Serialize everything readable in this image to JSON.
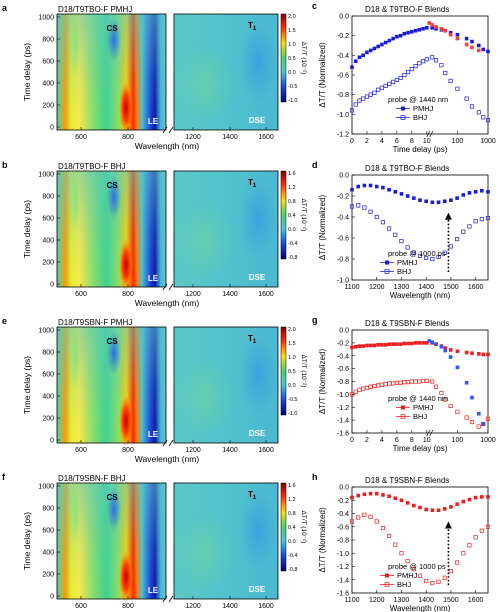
{
  "heatmaps": [
    {
      "letter": "a",
      "title": "D18/T9TBO-F PMHJ",
      "cbar_ticks": [
        "2.0",
        "1.5",
        "1.0",
        "0.5",
        "0.0",
        "-0.5",
        "-1.0"
      ],
      "cbar_range": [
        -1.0,
        2.0
      ]
    },
    {
      "letter": "b",
      "title": "D18/T9TBO-F BHJ",
      "cbar_ticks": [
        "1.6",
        "1.2",
        "0.8",
        "0.4",
        "0.0",
        "-0.4",
        "-0.8"
      ],
      "cbar_range": [
        -0.8,
        1.6
      ]
    },
    {
      "letter": "e",
      "title": "D18/T9SBN-F PMHJ",
      "cbar_ticks": [
        "2.0",
        "1.5",
        "1.0",
        "0.5",
        "0.0",
        "-0.5",
        "-1.0"
      ],
      "cbar_range": [
        -1.0,
        2.0
      ]
    },
    {
      "letter": "f",
      "title": "D18/T9SBN-F BHJ",
      "cbar_ticks": [
        "1.6",
        "1.2",
        "0.8",
        "0.4",
        "0.0",
        "-0.4",
        "-0.8"
      ],
      "cbar_range": [
        -0.8,
        1.6
      ]
    }
  ],
  "heatmap_common": {
    "xlabel": "Wavelength (nm)",
    "ylabel": "Time delay (ps)",
    "cbar_label": "ΔT/T (10⁻²)",
    "x_ticks_left": [
      "600",
      "800"
    ],
    "x_ticks_right": [
      "1200",
      "1400",
      "1600"
    ],
    "y_ticks": [
      "1000",
      "800",
      "600",
      "400",
      "200",
      "0"
    ],
    "labels": {
      "cs": "CS",
      "le": "LE",
      "t1": "T",
      "t1_sub": "1",
      "dse": "DSE"
    }
  },
  "chart_data": [
    {
      "panel": "c",
      "type": "scatter",
      "title": "D18 & T9TBO-F Blends",
      "xlabel": "Time delay (ps)",
      "ylabel": "ΔT/T (Normalized)",
      "xscale": "symlog",
      "x_ticks": [
        "0",
        "2",
        "4",
        "6",
        "8",
        "10",
        "100",
        "1000"
      ],
      "ylim": [
        -1.2,
        0.0
      ],
      "y_ticks": [
        "0.0",
        "-0.2",
        "-0.4",
        "-0.6",
        "-0.8",
        "-1.0",
        "-1.2"
      ],
      "annotation": "probe @ 1440 nm",
      "series": [
        {
          "name": "PMHJ",
          "color": "#1a1adb",
          "filled": true,
          "x": [
            0,
            0.5,
            1,
            1.5,
            2,
            2.5,
            3,
            3.5,
            4,
            4.5,
            5,
            5.5,
            6,
            6.5,
            7,
            7.5,
            8,
            8.5,
            9,
            9.5,
            10,
            15,
            20,
            30,
            40,
            60,
            100,
            200,
            300,
            500,
            700,
            1000
          ],
          "y": [
            -0.52,
            -0.46,
            -0.42,
            -0.4,
            -0.37,
            -0.35,
            -0.33,
            -0.31,
            -0.29,
            -0.27,
            -0.25,
            -0.23,
            -0.21,
            -0.2,
            -0.18,
            -0.17,
            -0.16,
            -0.15,
            -0.14,
            -0.13,
            -0.12,
            -0.12,
            -0.13,
            -0.14,
            -0.15,
            -0.17,
            -0.19,
            -0.23,
            -0.26,
            -0.3,
            -0.34,
            -0.36
          ]
        },
        {
          "name": "BHJ",
          "color": "#1a1adb",
          "filled": false,
          "x": [
            0,
            0.5,
            1,
            1.5,
            2,
            2.5,
            3,
            3.5,
            4,
            4.5,
            5,
            5.5,
            6,
            6.5,
            7,
            7.5,
            8,
            8.5,
            9,
            9.5,
            10,
            15,
            20,
            30,
            40,
            60,
            100,
            200,
            300,
            500,
            700,
            1000
          ],
          "y": [
            -0.96,
            -0.9,
            -0.86,
            -0.84,
            -0.82,
            -0.8,
            -0.78,
            -0.75,
            -0.73,
            -0.71,
            -0.69,
            -0.67,
            -0.65,
            -0.63,
            -0.6,
            -0.57,
            -0.54,
            -0.51,
            -0.48,
            -0.46,
            -0.44,
            -0.42,
            -0.45,
            -0.5,
            -0.58,
            -0.66,
            -0.74,
            -0.84,
            -0.92,
            -0.98,
            -1.03,
            -1.06
          ]
        },
        {
          "name": "",
          "color": "#ff3b3b",
          "filled": true,
          "x": [
            12,
            15,
            20,
            30,
            40,
            60,
            100,
            200,
            300,
            500
          ],
          "y": [
            -0.07,
            -0.09,
            -0.11,
            -0.13,
            -0.15,
            -0.19,
            -0.23,
            -0.29,
            -0.32,
            -0.35
          ]
        }
      ]
    },
    {
      "panel": "d",
      "type": "scatter",
      "title": "D18 & T9TBO-F Blends",
      "xlabel": "Wavelength (nm)",
      "ylabel": "ΔT/T (Normalized)",
      "xlim": [
        1100,
        1650
      ],
      "x_ticks": [
        "1100",
        "1200",
        "1300",
        "1400",
        "1500",
        "1600"
      ],
      "ylim": [
        -1.0,
        0.0
      ],
      "y_ticks": [
        "0.0",
        "-0.2",
        "-0.4",
        "-0.6",
        "-0.8",
        "-1.0"
      ],
      "annotation": "probe @ 1000 ps",
      "series": [
        {
          "name": "PMHJ",
          "color": "#1a1adb",
          "filled": true,
          "x": [
            1100,
            1125,
            1150,
            1175,
            1200,
            1225,
            1250,
            1275,
            1300,
            1325,
            1350,
            1375,
            1400,
            1425,
            1450,
            1475,
            1500,
            1525,
            1550,
            1575,
            1600,
            1625,
            1650
          ],
          "y": [
            -0.14,
            -0.11,
            -0.1,
            -0.1,
            -0.11,
            -0.12,
            -0.14,
            -0.16,
            -0.18,
            -0.2,
            -0.22,
            -0.24,
            -0.25,
            -0.26,
            -0.26,
            -0.25,
            -0.24,
            -0.22,
            -0.19,
            -0.17,
            -0.16,
            -0.15,
            -0.16
          ]
        },
        {
          "name": "BHJ",
          "color": "#1a1adb",
          "filled": false,
          "x": [
            1100,
            1125,
            1150,
            1175,
            1200,
            1225,
            1250,
            1275,
            1300,
            1325,
            1350,
            1375,
            1400,
            1425,
            1450,
            1475,
            1500,
            1525,
            1550,
            1575,
            1600,
            1625,
            1650
          ],
          "y": [
            -0.3,
            -0.29,
            -0.31,
            -0.35,
            -0.4,
            -0.45,
            -0.51,
            -0.57,
            -0.63,
            -0.69,
            -0.74,
            -0.77,
            -0.79,
            -0.8,
            -0.78,
            -0.74,
            -0.68,
            -0.61,
            -0.54,
            -0.49,
            -0.44,
            -0.42,
            -0.41
          ]
        }
      ]
    },
    {
      "panel": "g",
      "type": "scatter",
      "title": "D18 & T9SBN-F Blends",
      "xlabel": "Time delay (ps)",
      "ylabel": "ΔT/T (Normalized)",
      "xscale": "symlog",
      "x_ticks": [
        "0",
        "2",
        "4",
        "6",
        "8",
        "10",
        "100",
        "1000"
      ],
      "ylim": [
        -1.6,
        0.0
      ],
      "y_ticks": [
        "0.0",
        "-0.2",
        "-0.4",
        "-0.6",
        "-0.8",
        "-1.0",
        "-1.2",
        "-1.4",
        "-1.6"
      ],
      "annotation": "probe @ 1440 nm",
      "series": [
        {
          "name": "PMHJ",
          "color": "#ee1c1c",
          "filled": true,
          "x": [
            0,
            0.5,
            1,
            1.5,
            2,
            2.5,
            3,
            3.5,
            4,
            4.5,
            5,
            5.5,
            6,
            6.5,
            7,
            7.5,
            8,
            8.5,
            9,
            9.5,
            10,
            15,
            20,
            30,
            40,
            60,
            100,
            200,
            300,
            500,
            700,
            1000
          ],
          "y": [
            -0.27,
            -0.26,
            -0.25,
            -0.25,
            -0.24,
            -0.24,
            -0.24,
            -0.23,
            -0.23,
            -0.23,
            -0.22,
            -0.22,
            -0.22,
            -0.22,
            -0.21,
            -0.21,
            -0.21,
            -0.2,
            -0.2,
            -0.2,
            -0.2,
            -0.2,
            -0.22,
            -0.25,
            -0.28,
            -0.31,
            -0.33,
            -0.35,
            -0.36,
            -0.37,
            -0.38,
            -0.38
          ]
        },
        {
          "name": "BHJ",
          "color": "#ee1c1c",
          "filled": false,
          "x": [
            0,
            0.5,
            1,
            1.5,
            2,
            2.5,
            3,
            3.5,
            4,
            4.5,
            5,
            5.5,
            6,
            6.5,
            7,
            7.5,
            8,
            8.5,
            9,
            9.5,
            10,
            15,
            20,
            30,
            40,
            60,
            100,
            200,
            300,
            500,
            700,
            1000
          ],
          "y": [
            -1.0,
            -0.96,
            -0.93,
            -0.91,
            -0.9,
            -0.88,
            -0.87,
            -0.86,
            -0.85,
            -0.84,
            -0.83,
            -0.83,
            -0.82,
            -0.82,
            -0.81,
            -0.81,
            -0.8,
            -0.8,
            -0.8,
            -0.79,
            -0.79,
            -0.8,
            -0.88,
            -0.98,
            -1.08,
            -1.18,
            -1.27,
            -1.36,
            -1.43,
            -1.5,
            -1.46,
            -1.38
          ]
        },
        {
          "name": "",
          "color": "#3355ff",
          "filled": true,
          "x": [
            12,
            15,
            20,
            30,
            40,
            60,
            100,
            200,
            300,
            500,
            700
          ],
          "y": [
            -0.17,
            -0.19,
            -0.22,
            -0.26,
            -0.32,
            -0.42,
            -0.58,
            -0.82,
            -1.05,
            -1.3,
            -1.46
          ]
        }
      ]
    },
    {
      "panel": "h",
      "type": "scatter",
      "title": "D18 & T9SBN-F Blends",
      "xlabel": "Wavelength (nm)",
      "ylabel": "ΔT/T (Normalized)",
      "xlim": [
        1100,
        1650
      ],
      "x_ticks": [
        "1100",
        "1200",
        "1300",
        "1400",
        "1500",
        "1600"
      ],
      "ylim": [
        -1.6,
        0.0
      ],
      "y_ticks": [
        "0.0",
        "-0.2",
        "-0.4",
        "-0.6",
        "-0.8",
        "-1.0",
        "-1.2",
        "-1.4",
        "-1.6"
      ],
      "annotation": "probe @ 1000 ps",
      "series": [
        {
          "name": "PMHJ",
          "color": "#ee1c1c",
          "filled": true,
          "x": [
            1100,
            1125,
            1150,
            1175,
            1200,
            1225,
            1250,
            1275,
            1300,
            1325,
            1350,
            1375,
            1400,
            1425,
            1450,
            1475,
            1500,
            1525,
            1550,
            1575,
            1600,
            1625,
            1650
          ],
          "y": [
            -0.16,
            -0.13,
            -0.11,
            -0.1,
            -0.1,
            -0.12,
            -0.14,
            -0.17,
            -0.2,
            -0.24,
            -0.28,
            -0.31,
            -0.34,
            -0.35,
            -0.35,
            -0.33,
            -0.3,
            -0.26,
            -0.22,
            -0.19,
            -0.16,
            -0.15,
            -0.15
          ]
        },
        {
          "name": "BHJ",
          "color": "#ee1c1c",
          "filled": false,
          "x": [
            1100,
            1125,
            1150,
            1175,
            1200,
            1225,
            1250,
            1275,
            1300,
            1325,
            1350,
            1375,
            1400,
            1425,
            1450,
            1475,
            1500,
            1525,
            1550,
            1575,
            1600,
            1625,
            1650
          ],
          "y": [
            -0.52,
            -0.46,
            -0.42,
            -0.45,
            -0.52,
            -0.62,
            -0.74,
            -0.87,
            -1.0,
            -1.12,
            -1.24,
            -1.34,
            -1.42,
            -1.45,
            -1.43,
            -1.37,
            -1.27,
            -1.14,
            -1.0,
            -0.88,
            -0.76,
            -0.66,
            -0.6
          ]
        }
      ]
    }
  ]
}
